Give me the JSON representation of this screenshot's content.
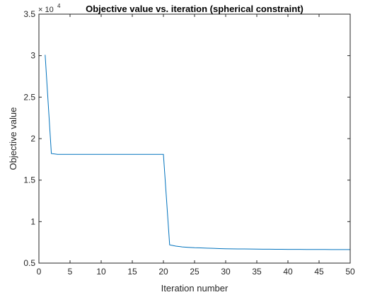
{
  "chart_data": {
    "type": "line",
    "title": "Objective value vs. iteration (spherical constraint)",
    "xlabel": "Iteration number",
    "ylabel": "Objective value",
    "y_exponent_base": "× 10",
    "y_exponent_power": "4",
    "xlim": [
      0,
      50
    ],
    "ylim": [
      0.5,
      3.5
    ],
    "x_ticks": [
      0,
      5,
      10,
      15,
      20,
      25,
      30,
      35,
      40,
      45,
      50
    ],
    "y_ticks": [
      0.5,
      1,
      1.5,
      2,
      2.5,
      3,
      3.5
    ],
    "y_tick_labels": [
      "0.5",
      "1",
      "1.5",
      "2",
      "2.5",
      "3",
      "3.5"
    ],
    "grid": false,
    "series": [
      {
        "color": "#0072bd",
        "x": [
          1,
          2,
          3,
          4,
          5,
          6,
          7,
          8,
          9,
          10,
          11,
          12,
          13,
          14,
          15,
          16,
          17,
          18,
          19,
          20,
          21,
          22,
          23,
          24,
          25,
          26,
          27,
          28,
          29,
          30,
          31,
          32,
          33,
          34,
          35,
          36,
          37,
          38,
          39,
          40,
          41,
          42,
          43,
          44,
          45,
          46,
          47,
          48,
          49,
          50
        ],
        "values": [
          3.01,
          1.82,
          1.81,
          1.81,
          1.81,
          1.81,
          1.81,
          1.81,
          1.81,
          1.81,
          1.81,
          1.81,
          1.81,
          1.81,
          1.81,
          1.81,
          1.81,
          1.81,
          1.81,
          1.81,
          0.72,
          0.705,
          0.695,
          0.69,
          0.685,
          0.683,
          0.68,
          0.678,
          0.675,
          0.673,
          0.672,
          0.671,
          0.67,
          0.669,
          0.668,
          0.667,
          0.667,
          0.666,
          0.666,
          0.665,
          0.665,
          0.665,
          0.664,
          0.664,
          0.664,
          0.664,
          0.663,
          0.663,
          0.663,
          0.663
        ]
      }
    ]
  }
}
